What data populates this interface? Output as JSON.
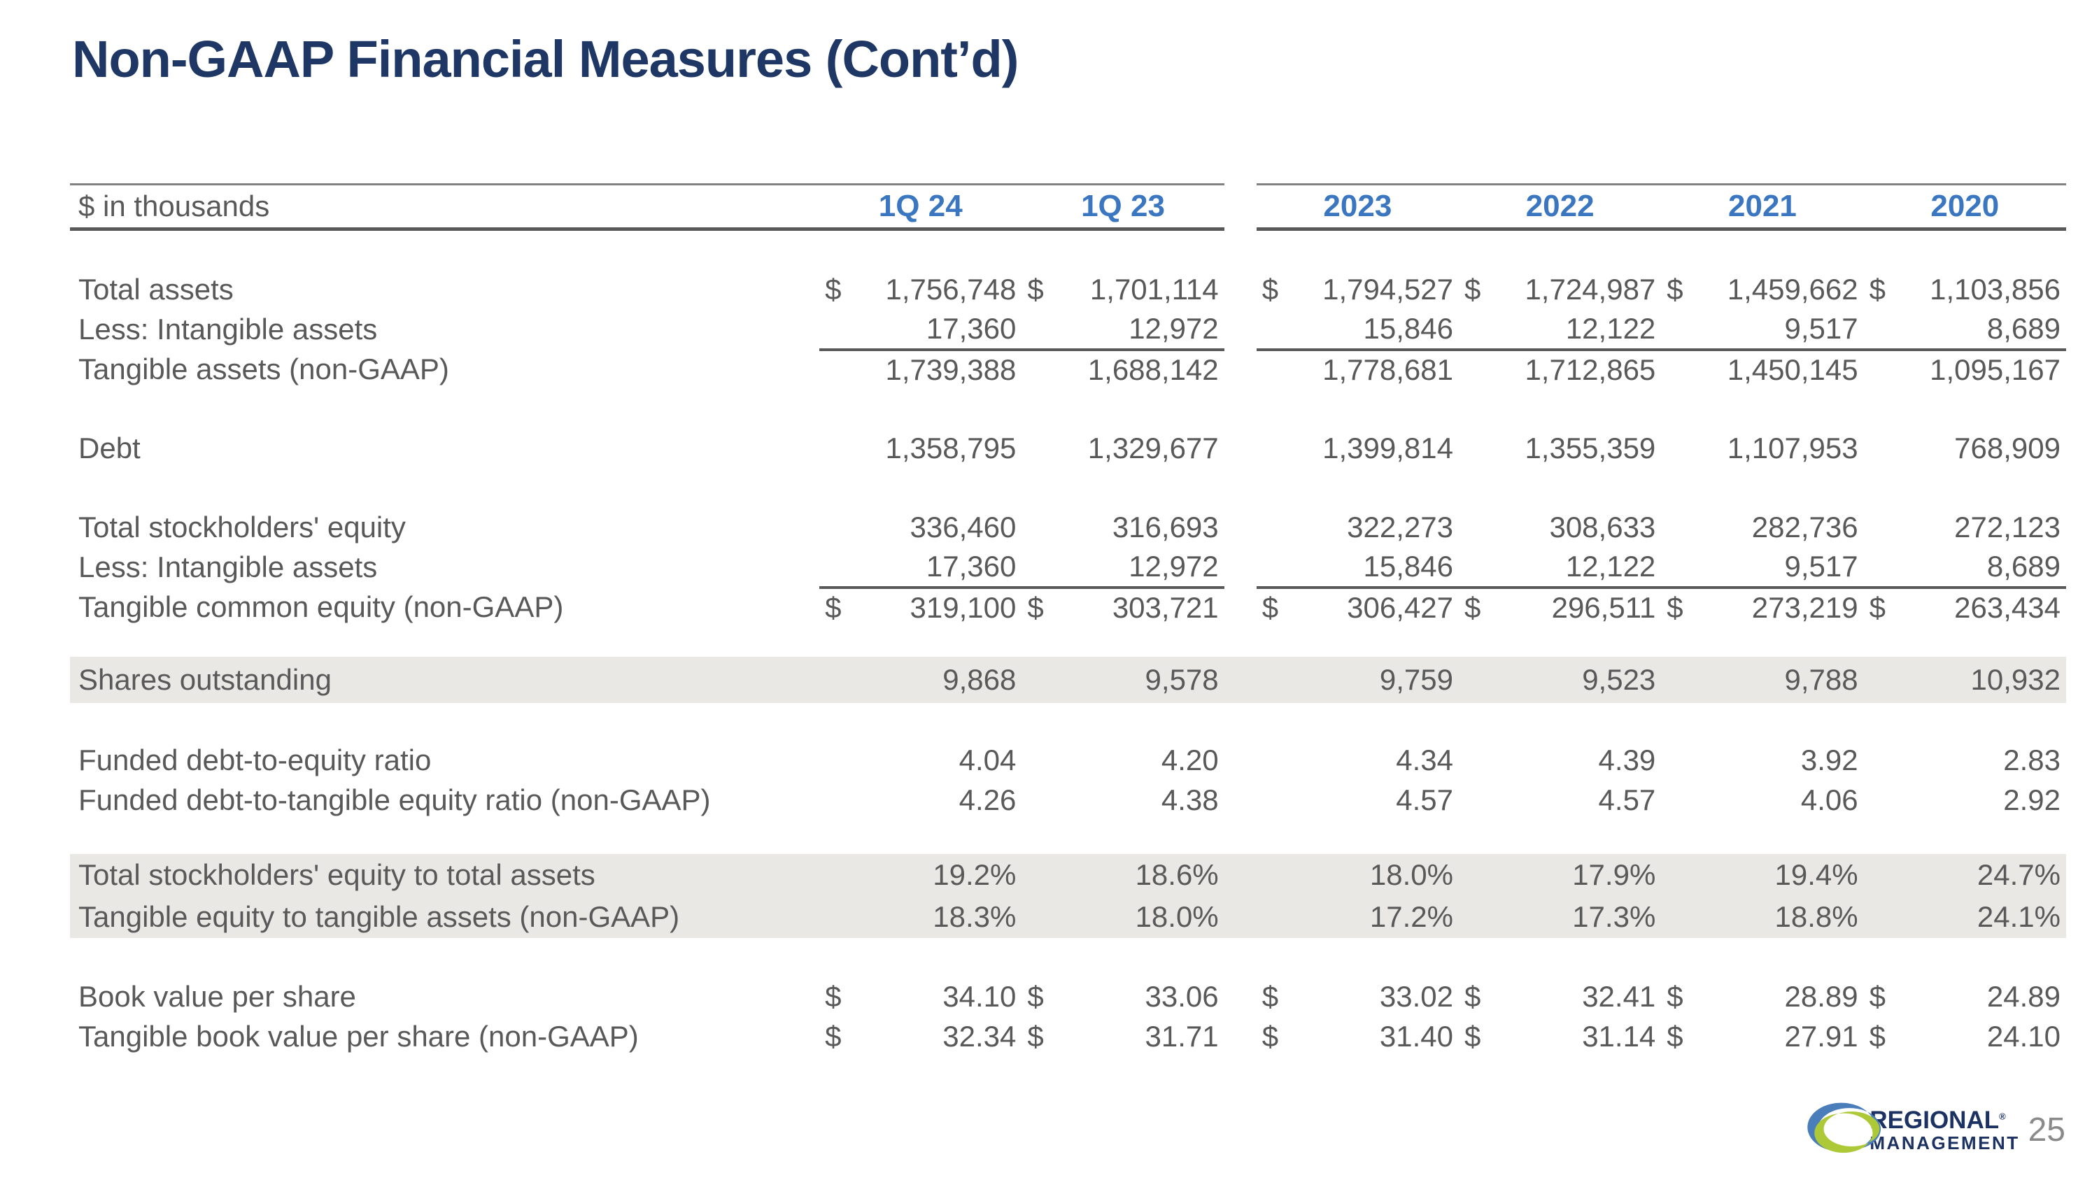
{
  "slide": {
    "title": "Non-GAAP Financial Measures (Cont’d)",
    "page_number": "25"
  },
  "colors": {
    "title_navy": "#1e3765",
    "header_blue": "#3b76c0",
    "body_gray": "#595959",
    "band_gray": "#e9e8e5",
    "rule_thin": "#808080",
    "rule_thick": "#595959",
    "logo_navy": "#1b3262",
    "logo_blue": "#4a7ebb",
    "logo_green": "#aec937"
  },
  "logo": {
    "line1": "REGIONAL",
    "trademark": "®",
    "line2": "MANAGEMENT"
  },
  "table": {
    "unit_label": "$ in thousands",
    "currency_symbol": "$",
    "columns": [
      "1Q 24",
      "1Q 23",
      "2023",
      "2022",
      "2021",
      "2020"
    ],
    "rows": [
      {
        "label": "Total assets",
        "dollar": true,
        "spacer_before": 58,
        "values": [
          "1,756,748",
          "1,701,114",
          "1,794,527",
          "1,724,987",
          "1,459,662",
          "1,103,856"
        ]
      },
      {
        "label": "Less: Intangible assets",
        "underline": true,
        "values": [
          "17,360",
          "12,972",
          "15,846",
          "12,122",
          "9,517",
          "8,689"
        ]
      },
      {
        "label": "Tangible assets (non-GAAP)",
        "values": [
          "1,739,388",
          "1,688,142",
          "1,778,681",
          "1,712,865",
          "1,450,145",
          "1,095,167"
        ]
      },
      {
        "label": "Debt",
        "spacer_before": 56,
        "values": [
          "1,358,795",
          "1,329,677",
          "1,399,814",
          "1,355,359",
          "1,107,953",
          "768,909"
        ]
      },
      {
        "label": "Total stockholders' equity",
        "spacer_before": 56,
        "values": [
          "336,460",
          "316,693",
          "322,273",
          "308,633",
          "282,736",
          "272,123"
        ]
      },
      {
        "label": "Less: Intangible assets",
        "underline": true,
        "values": [
          "17,360",
          "12,972",
          "15,846",
          "12,122",
          "9,517",
          "8,689"
        ]
      },
      {
        "label": "Tangible common equity (non-GAAP)",
        "dollar": true,
        "values": [
          "319,100",
          "303,721",
          "306,427",
          "296,511",
          "273,219",
          "263,434"
        ]
      },
      {
        "label": "Shares outstanding",
        "shaded": true,
        "spacer_before": 42,
        "height": 66,
        "values": [
          "9,868",
          "9,578",
          "9,759",
          "9,523",
          "9,788",
          "10,932"
        ]
      },
      {
        "label": "Funded debt-to-equity ratio",
        "spacer_before": 54,
        "values": [
          "4.04",
          "4.20",
          "4.34",
          "4.39",
          "3.92",
          "2.83"
        ]
      },
      {
        "label": "Funded debt-to-tangible equity ratio (non-GAAP)",
        "values": [
          "4.26",
          "4.38",
          "4.57",
          "4.57",
          "4.06",
          "2.92"
        ]
      },
      {
        "label": "Total stockholders' equity to total assets",
        "shaded": true,
        "spacer_before": 48,
        "height": 60,
        "values": [
          "19.2%",
          "18.6%",
          "18.0%",
          "17.9%",
          "19.4%",
          "24.7%"
        ]
      },
      {
        "label": "Tangible equity to tangible assets (non-GAAP)",
        "shaded": true,
        "height": 60,
        "values": [
          "18.3%",
          "18.0%",
          "17.2%",
          "17.3%",
          "18.8%",
          "24.1%"
        ]
      },
      {
        "label": "Book value per share",
        "dollar": true,
        "spacer_before": 56,
        "values": [
          "34.10",
          "33.06",
          "33.02",
          "32.41",
          "28.89",
          "24.89"
        ]
      },
      {
        "label": "Tangible book value per share (non-GAAP)",
        "dollar": true,
        "values": [
          "32.34",
          "31.71",
          "31.40",
          "31.14",
          "27.91",
          "24.10"
        ]
      }
    ]
  }
}
